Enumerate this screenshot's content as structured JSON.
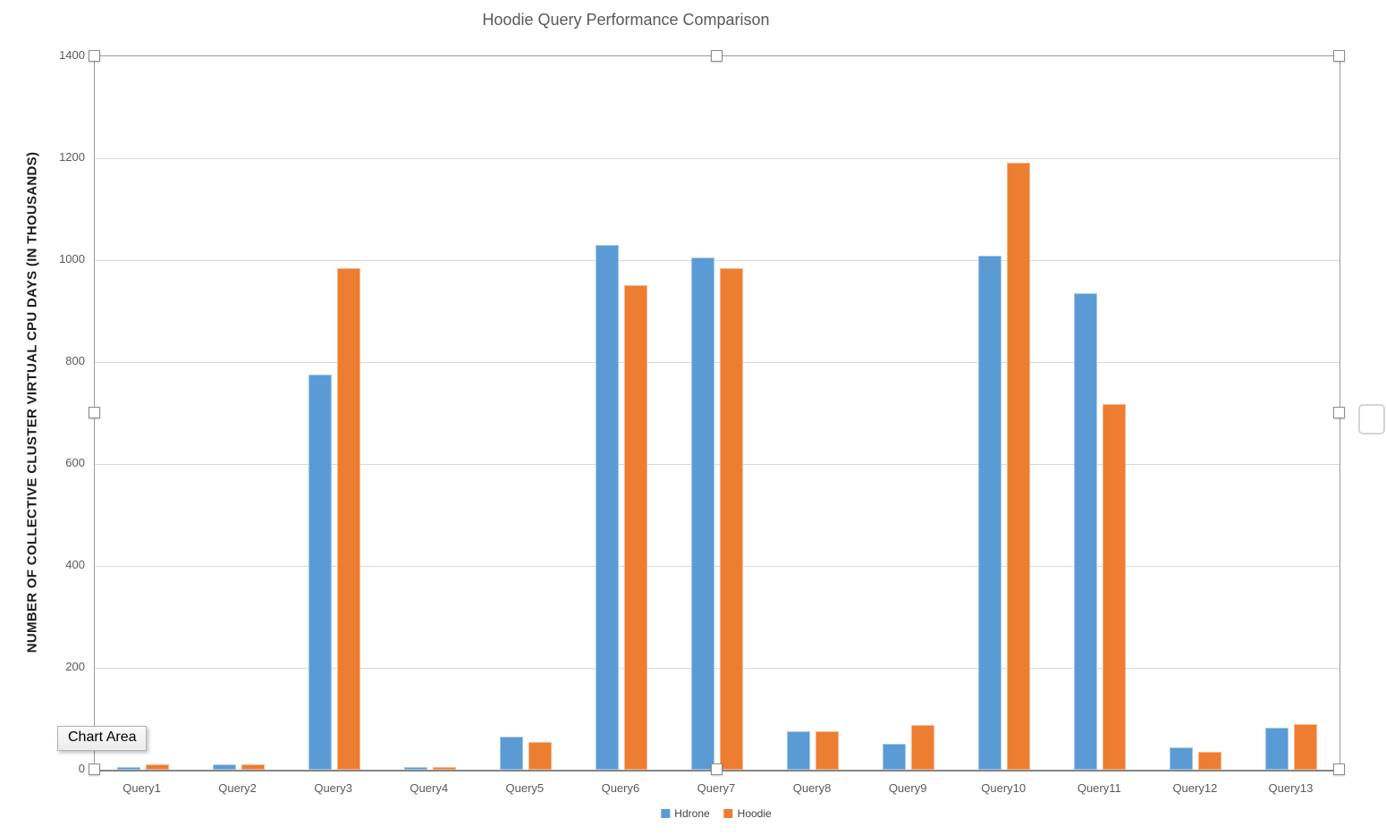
{
  "chart_data": {
    "type": "bar",
    "title": "Hoodie Query Performance Comparison",
    "ylabel": "NUMBER OF COLLECTIVE CLUSTER VIRTUAL CPU DAYS (IN THOUSANDS)",
    "categories": [
      "Query1",
      "Query2",
      "Query3",
      "Query4",
      "Query5",
      "Query6",
      "Query7",
      "Query8",
      "Query9",
      "Query10",
      "Query11",
      "Query12",
      "Query13"
    ],
    "series": [
      {
        "name": "Hdrone",
        "color": "#5B9BD5",
        "values": [
          5,
          10,
          775,
          6,
          65,
          1030,
          1005,
          76,
          51,
          1008,
          935,
          44,
          82
        ]
      },
      {
        "name": "Hoodie",
        "color": "#ED7D31",
        "values": [
          10,
          10,
          985,
          5,
          54,
          950,
          985,
          76,
          88,
          1192,
          718,
          35,
          90
        ]
      }
    ],
    "ylim": [
      0,
      1400
    ],
    "ytick_interval": 200,
    "yticks": [
      "0",
      "200",
      "400",
      "600",
      "800",
      "1000",
      "1200",
      "1400"
    ],
    "grid": true,
    "legend_position": "bottom"
  },
  "overlay": {
    "tooltip": "Chart Area"
  },
  "colors": {
    "series_hdrone": "#5B9BD5",
    "series_hoodie": "#ED7D31",
    "gridline": "#D9D9D9",
    "axis_text": "#595959",
    "title_text": "#595959"
  }
}
